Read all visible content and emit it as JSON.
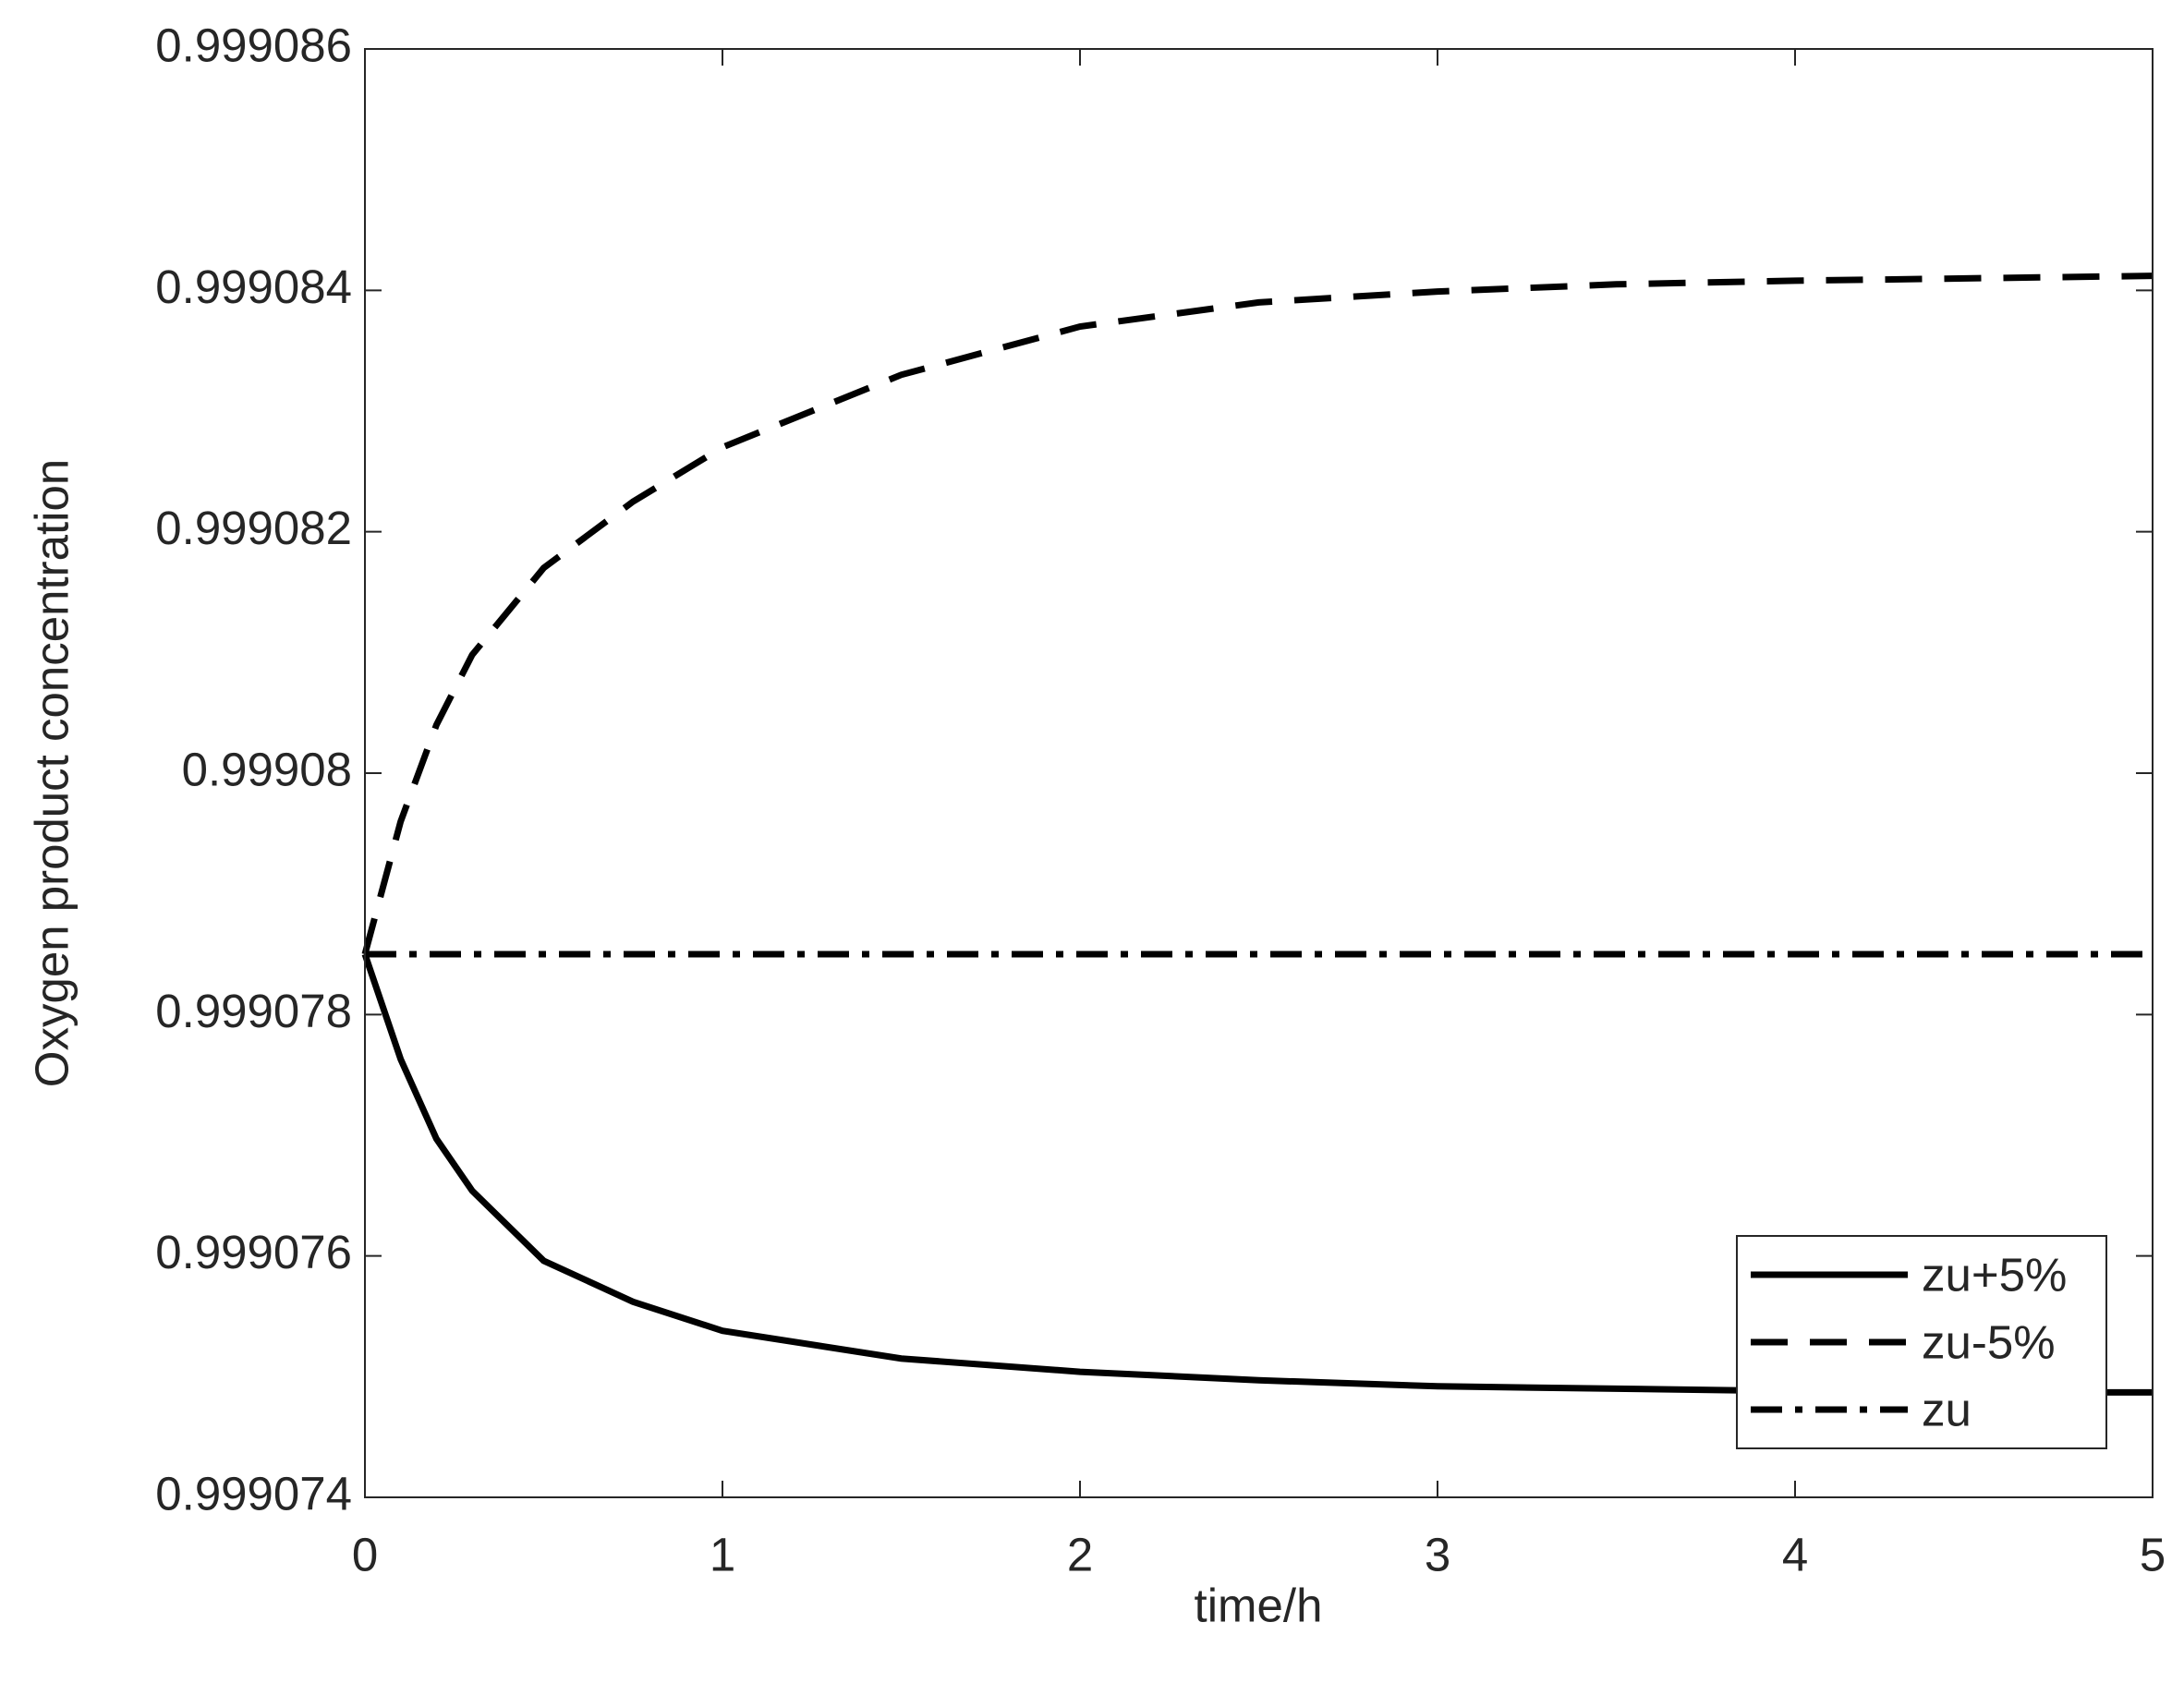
{
  "chart_data": {
    "type": "line",
    "xlabel": "time/h",
    "ylabel": "Oxygen product concentration",
    "x": [
      0,
      0.1,
      0.2,
      0.3,
      0.5,
      0.75,
      1,
      1.5,
      2,
      2.5,
      3,
      3.5,
      4,
      4.5,
      5
    ],
    "series": [
      {
        "name": "zu+5%",
        "color": "#000000",
        "dash": "solid",
        "values": [
          0.9990785,
          0.99907763,
          0.99907697,
          0.99907654,
          0.99907596,
          0.99907562,
          0.99907538,
          0.99907515,
          0.99907504,
          0.99907497,
          0.99907492,
          0.9990749,
          0.99907488,
          0.99907487,
          0.99907487
        ]
      },
      {
        "name": "zu-5%",
        "color": "#000000",
        "dash": "dashed",
        "values": [
          0.9990785,
          0.9990796,
          0.9990804,
          0.99908098,
          0.9990817,
          0.99908225,
          0.9990827,
          0.9990833,
          0.9990837,
          0.9990839,
          0.99908399,
          0.99908405,
          0.99908408,
          0.9990841,
          0.99908412
        ]
      },
      {
        "name": "zu",
        "color": "#000000",
        "dash": "dashdot",
        "values": [
          0.9990785,
          0.9990785,
          0.9990785,
          0.9990785,
          0.9990785,
          0.9990785,
          0.9990785,
          0.9990785,
          0.9990785,
          0.9990785,
          0.9990785,
          0.9990785,
          0.9990785,
          0.9990785,
          0.9990785
        ]
      }
    ],
    "xlim": [
      0,
      5
    ],
    "xticks": [
      0,
      1,
      2,
      3,
      4,
      5
    ],
    "ylim": [
      0.999074,
      0.999086
    ],
    "yticks": [
      0.999074,
      0.999076,
      0.999078,
      0.99908,
      0.999082,
      0.999084,
      0.999086
    ],
    "grid": false,
    "legend": "lower right"
  }
}
